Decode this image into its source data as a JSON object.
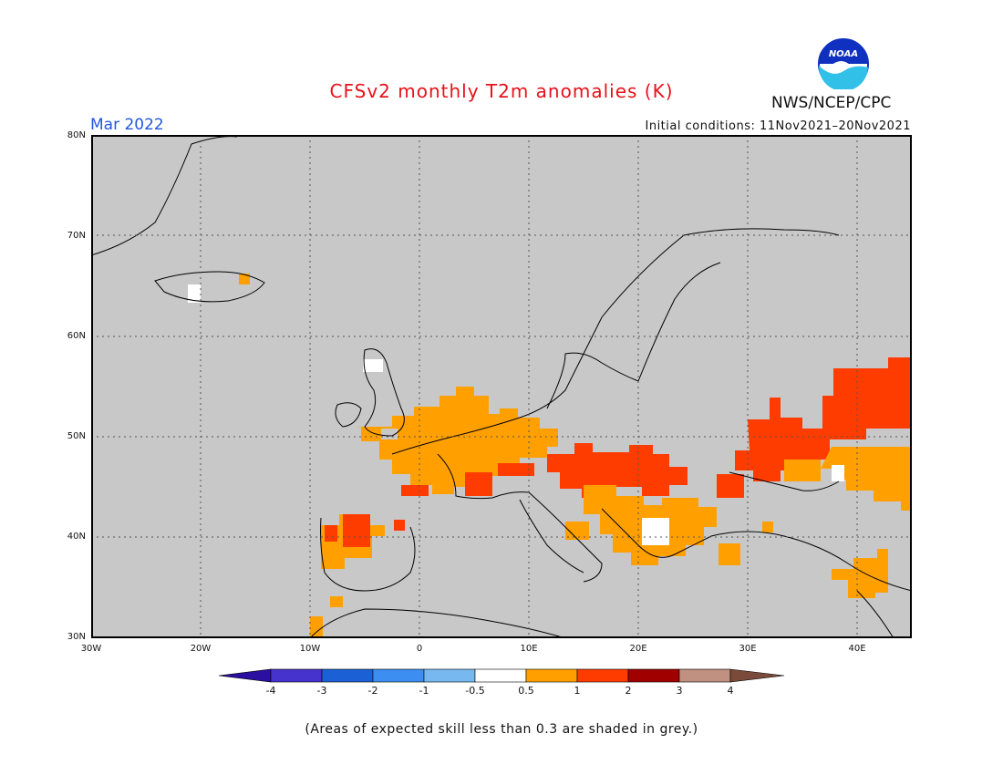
{
  "header": {
    "title": "CFSv2 monthly T2m anomalies (K)",
    "valid_month": "Mar 2022",
    "initial_conditions": "Initial conditions: 11Nov2021–20Nov2021",
    "agency": "NWS/NCEP/CPC",
    "logo_text": "NOAA"
  },
  "map": {
    "lat_labels": [
      "80N",
      "70N",
      "60N",
      "50N",
      "40N",
      "30N"
    ],
    "lon_labels": [
      "30W",
      "20W",
      "10W",
      "0",
      "10E",
      "20E",
      "30E",
      "40E"
    ],
    "land_mask_color": "#c8c8c8",
    "background": "#c8c8c8"
  },
  "colorbar": {
    "labels": [
      "-4",
      "-3",
      "-2",
      "-1",
      "-0.5",
      "0.5",
      "1",
      "2",
      "3",
      "4"
    ],
    "colors": [
      "#2b0fa0",
      "#4632cc",
      "#1c60d6",
      "#3c8ff0",
      "#78b8f0",
      "#ffffff",
      "#ffa000",
      "#ff3c00",
      "#a10000",
      "#c09080",
      "#7a4a3a"
    ]
  },
  "note": "(Areas of expected skill less than 0.3 are shaded in grey.)"
}
